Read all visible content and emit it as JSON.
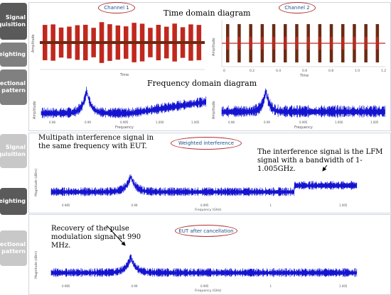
{
  "sidebar_top": [
    {
      "label": "Signal\nacquisition"
    },
    {
      "label": "weighting"
    },
    {
      "label": "Directional\npattern"
    }
  ],
  "sidebar_bottom": [
    {
      "label": "Signal\nacquisition"
    },
    {
      "label": "weighting"
    },
    {
      "label": "Directional\npattern"
    }
  ],
  "channels": {
    "ch1": "Channel 1",
    "ch2": "Channel 2"
  },
  "headings": {
    "time_domain": "Time domain diagram",
    "freq_domain": "Frequency domain diagram"
  },
  "axes": {
    "amplitude": "Amplitude",
    "time": "Time",
    "frequency": "Frequency",
    "magnitude": "Magnitude (dBm)",
    "frequency_ghz": "Frequency (GHz)"
  },
  "ticks": {
    "time_ch2": [
      "0",
      "0.2",
      "0.4",
      "0.6",
      "0.8",
      "1.0",
      "1.2"
    ],
    "freq": [
      "0.98",
      "0.99",
      "0.995",
      "1.000",
      "1.005"
    ],
    "freq_bottom": [
      "0.985",
      "0.99",
      "0.995",
      "1",
      "1.005"
    ]
  },
  "bottom": {
    "weighted_label": "Weighted interference",
    "eut_label": "EUT after cancellation",
    "note_multipath": "Multipath interference signal in the same frequency with EUT.",
    "note_lfm": "The interference signal is the LFM signal with a bandwidth of 1-1.005GHz.",
    "note_recovery": "Recovery of the pulse modulation signal at 990 MHz."
  },
  "colors": {
    "time_signal": "#c0281e",
    "time_signal_dark": "#6b2a12",
    "spectrum": "#1414d0",
    "oval_border": "#b33030"
  }
}
